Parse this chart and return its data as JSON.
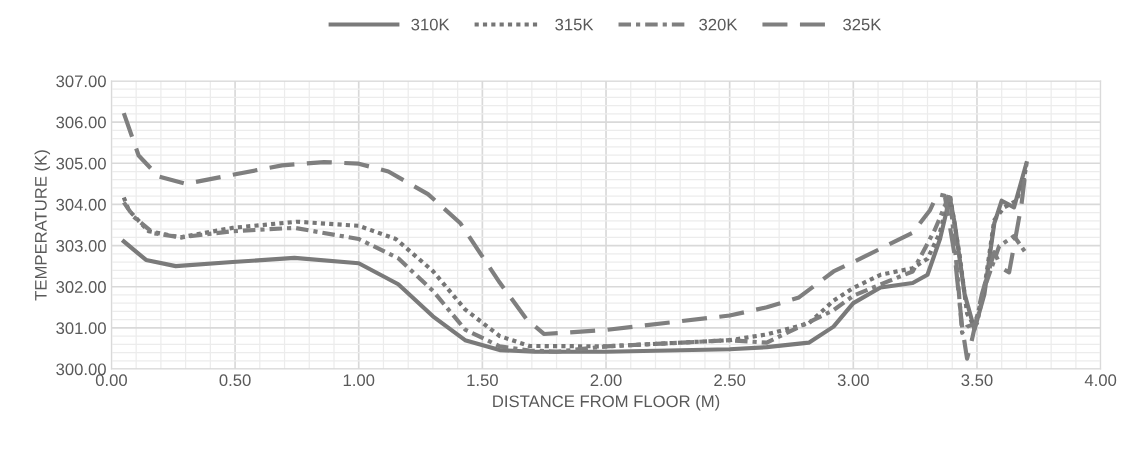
{
  "chart_data": {
    "type": "line",
    "xlabel": "DISTANCE FROM FLOOR (M)",
    "ylabel": "TEMPERATURE (K)",
    "xlim": [
      0,
      4
    ],
    "ylim": [
      300,
      307
    ],
    "xticks": [
      {
        "value": 0,
        "label": "0.00"
      },
      {
        "value": 0.5,
        "label": "0.50"
      },
      {
        "value": 1,
        "label": "1.00"
      },
      {
        "value": 1.5,
        "label": "1.50"
      },
      {
        "value": 2,
        "label": "2.00"
      },
      {
        "value": 2.5,
        "label": "2.50"
      },
      {
        "value": 3,
        "label": "3.00"
      },
      {
        "value": 3.5,
        "label": "3.50"
      },
      {
        "value": 4,
        "label": "4.00"
      }
    ],
    "yticks": [
      {
        "value": 300,
        "label": "300.00"
      },
      {
        "value": 301,
        "label": "301.00"
      },
      {
        "value": 302,
        "label": "302.00"
      },
      {
        "value": 303,
        "label": "303.00"
      },
      {
        "value": 304,
        "label": "304.00"
      },
      {
        "value": 305,
        "label": "305.00"
      },
      {
        "value": 306,
        "label": "306.00"
      },
      {
        "value": 307,
        "label": "307.00"
      }
    ],
    "grid": true,
    "legend": "top",
    "marker": "none",
    "series": [
      {
        "name": "310K",
        "color": "#7a7a7a",
        "line_style": "solid",
        "x": [
          0.05,
          0.14,
          0.26,
          0.49,
          0.74,
          1.0,
          1.16,
          1.3,
          1.43,
          1.57,
          1.71,
          2.0,
          2.5,
          2.65,
          2.82,
          2.92,
          3.0,
          3.11,
          3.24,
          3.3,
          3.35,
          3.39,
          3.41,
          3.45,
          3.49,
          3.53,
          3.57,
          3.6,
          3.65,
          3.7
        ],
        "values": [
          303.1,
          302.65,
          302.5,
          302.6,
          302.7,
          302.57,
          302.06,
          301.28,
          300.7,
          300.46,
          300.42,
          300.42,
          300.48,
          300.53,
          300.64,
          301.03,
          301.6,
          301.98,
          302.09,
          302.29,
          303.15,
          304.17,
          303.54,
          301.82,
          300.96,
          301.82,
          303.54,
          304.09,
          303.93,
          305.0
        ]
      },
      {
        "name": "315K",
        "color": "#767676",
        "line_style": "dotted",
        "x": [
          0.05,
          0.07,
          0.15,
          0.28,
          0.49,
          0.75,
          1.0,
          1.15,
          1.3,
          1.43,
          1.57,
          1.69,
          2.0,
          2.5,
          2.65,
          2.82,
          2.92,
          3.0,
          3.11,
          3.24,
          3.3,
          3.35,
          3.39,
          3.43,
          3.46,
          3.49,
          3.53,
          3.57,
          3.61,
          3.66,
          3.69,
          3.7
        ],
        "values": [
          304.17,
          303.86,
          303.35,
          303.2,
          303.43,
          303.58,
          303.48,
          303.16,
          302.38,
          301.45,
          300.8,
          300.56,
          300.55,
          300.7,
          300.84,
          301.11,
          301.66,
          301.97,
          302.29,
          302.45,
          302.68,
          303.31,
          304.25,
          302.76,
          301.35,
          301.03,
          301.97,
          303.62,
          303.93,
          304.09,
          304.64,
          304.95
        ]
      },
      {
        "name": "320K",
        "color": "#7f7f7f",
        "line_style": "dashdot",
        "x": [
          0.05,
          0.09,
          0.17,
          0.28,
          0.49,
          0.74,
          1.0,
          1.16,
          1.3,
          1.43,
          1.57,
          1.69,
          1.8,
          2.0,
          2.5,
          2.65,
          2.92,
          3.0,
          3.14,
          3.24,
          3.33,
          3.39,
          3.42,
          3.44,
          3.46,
          3.5,
          3.53,
          3.59,
          3.65,
          3.7
        ],
        "values": [
          304.05,
          303.7,
          303.3,
          303.2,
          303.35,
          303.43,
          303.16,
          302.69,
          301.9,
          300.96,
          300.55,
          300.45,
          300.42,
          300.55,
          300.7,
          300.64,
          301.43,
          301.78,
          302.13,
          302.37,
          303.39,
          304.25,
          302.37,
          300.88,
          301.03,
          301.11,
          301.97,
          302.99,
          303.23,
          302.8
        ]
      },
      {
        "name": "325K",
        "color": "#7f7f7f",
        "line_style": "dashed",
        "x": [
          0.05,
          0.11,
          0.19,
          0.3,
          0.49,
          0.69,
          0.86,
          1.0,
          1.12,
          1.28,
          1.41,
          1.57,
          1.68,
          1.75,
          2.0,
          2.5,
          2.65,
          2.78,
          2.92,
          3.0,
          3.24,
          3.31,
          3.34,
          3.37,
          3.41,
          3.44,
          3.46,
          3.48,
          3.52,
          3.57,
          3.6,
          3.63,
          3.65,
          3.68,
          3.7
        ],
        "values": [
          306.22,
          305.19,
          304.68,
          304.5,
          304.72,
          304.95,
          305.03,
          304.99,
          304.8,
          304.25,
          303.55,
          302.1,
          301.2,
          300.85,
          300.95,
          301.3,
          301.5,
          301.74,
          302.37,
          302.6,
          303.31,
          303.86,
          304.25,
          304.21,
          302.76,
          301.03,
          300.25,
          300.72,
          301.82,
          302.84,
          302.45,
          302.35,
          303.0,
          304.0,
          305.0
        ]
      }
    ]
  }
}
